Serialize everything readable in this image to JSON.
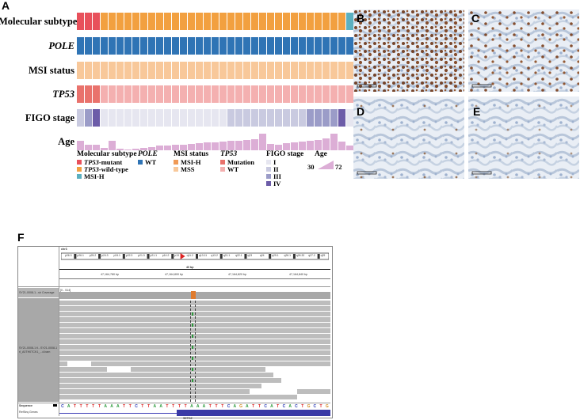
{
  "panels": {
    "A": "A",
    "B": "B",
    "C": "C",
    "D": "D",
    "E": "E",
    "F": "F"
  },
  "heatmap": {
    "rows": [
      {
        "key": "subtype",
        "label": "Molecular subtype",
        "italic": false
      },
      {
        "key": "pole",
        "label": "POLE",
        "italic": true
      },
      {
        "key": "msi",
        "label": "MSI status",
        "italic": false
      },
      {
        "key": "tp53",
        "label": "TP53",
        "italic": true
      },
      {
        "key": "figo",
        "label": "FIGO stage",
        "italic": false
      },
      {
        "key": "age",
        "label": "Age",
        "italic": false
      }
    ],
    "colors": {
      "tp53_mutant": "#e8505b",
      "tp53_wildtype": "#f2a040",
      "msi_h_subtype": "#5bb0c0",
      "pole_wt": "#2f74b5",
      "msi_h": "#f09a56",
      "mss": "#f8c89a",
      "tp53_mutation": "#e9726c",
      "tp53_wt": "#f4b0b0",
      "figo_I": "#e6e6f0",
      "figo_II": "#c9cae0",
      "figo_III": "#9b9cc8",
      "figo_IV": "#6c5ca8",
      "age": "#dcaed6"
    },
    "samples": {
      "subtype": [
        "m",
        "m",
        "m",
        "w",
        "w",
        "w",
        "w",
        "w",
        "w",
        "w",
        "w",
        "w",
        "w",
        "w",
        "w",
        "w",
        "w",
        "w",
        "w",
        "w",
        "w",
        "w",
        "w",
        "w",
        "w",
        "w",
        "w",
        "w",
        "w",
        "w",
        "w",
        "w",
        "w",
        "w",
        "h"
      ],
      "msi": [
        "s",
        "s",
        "s",
        "s",
        "s",
        "s",
        "s",
        "s",
        "s",
        "s",
        "s",
        "s",
        "s",
        "s",
        "s",
        "s",
        "s",
        "s",
        "s",
        "s",
        "s",
        "s",
        "s",
        "s",
        "s",
        "s",
        "s",
        "s",
        "s",
        "s",
        "s",
        "s",
        "s",
        "s",
        "s"
      ],
      "tp53": [
        "m",
        "m",
        "m",
        "w",
        "w",
        "w",
        "w",
        "w",
        "w",
        "w",
        "w",
        "w",
        "w",
        "w",
        "w",
        "w",
        "w",
        "w",
        "w",
        "w",
        "w",
        "w",
        "w",
        "w",
        "w",
        "w",
        "w",
        "w",
        "w",
        "w",
        "w",
        "w",
        "w",
        "w",
        "w"
      ],
      "figo": [
        "II",
        "III",
        "IV",
        "I",
        "I",
        "I",
        "I",
        "I",
        "I",
        "I",
        "I",
        "I",
        "I",
        "I",
        "I",
        "I",
        "I",
        "I",
        "I",
        "II",
        "II",
        "II",
        "II",
        "II",
        "II",
        "II",
        "II",
        "II",
        "II",
        "III",
        "III",
        "III",
        "III",
        "IV",
        "I"
      ],
      "age": [
        0.55,
        0.3,
        0.3,
        0.15,
        0.55,
        0.1,
        0.05,
        0.1,
        0.15,
        0.2,
        0.25,
        0.25,
        0.3,
        0.3,
        0.35,
        0.4,
        0.45,
        0.45,
        0.5,
        0.55,
        0.55,
        0.6,
        0.65,
        0.95,
        0.35,
        0.3,
        0.4,
        0.45,
        0.5,
        0.55,
        0.6,
        0.7,
        0.95,
        0.5,
        0.25
      ]
    }
  },
  "legend": {
    "subtype": {
      "title": "Molecular subtype",
      "items": [
        {
          "pre": "",
          "it": "TP53",
          "post": "-mutant",
          "color": "#e8505b"
        },
        {
          "pre": "",
          "it": "TP53",
          "post": "-wild-type",
          "color": "#f2a040"
        },
        {
          "pre": "MSI-H",
          "it": "",
          "post": "",
          "color": "#5bb0c0"
        }
      ]
    },
    "pole": {
      "title": "POLE",
      "items": [
        {
          "label": "WT",
          "color": "#2f74b5"
        }
      ]
    },
    "msi": {
      "title": "MSI status",
      "items": [
        {
          "label": "MSI-H",
          "color": "#f09a56"
        },
        {
          "label": "MSS",
          "color": "#f8c89a"
        }
      ]
    },
    "tp53": {
      "title": "TP53",
      "items": [
        {
          "label": "Mutation",
          "color": "#e9726c"
        },
        {
          "label": "WT",
          "color": "#f4b0b0"
        }
      ]
    },
    "figo": {
      "title": "FIGO stage",
      "items": [
        {
          "label": "I",
          "color": "#e6e6f0"
        },
        {
          "label": "II",
          "color": "#c9cae0"
        },
        {
          "label": "III",
          "color": "#9b9cc8"
        },
        {
          "label": "IV",
          "color": "#6c5ca8"
        }
      ]
    },
    "age": {
      "title": "Age",
      "min": "30",
      "max": "72"
    }
  },
  "igv": {
    "chrom": "chr3",
    "bands": [
      "p26.3",
      "p26.1",
      "p25.2",
      "p24.3",
      "p24.1",
      "p22.3",
      "p21.3",
      "p21.1",
      "p14.2",
      "p13",
      "q11.2",
      "q13.11",
      "q13.2",
      "q21.1",
      "q22.1",
      "q23",
      "q24",
      "q25.1",
      "q26.1",
      "q26.32",
      "q27.2",
      "q29"
    ],
    "scale_label": "40 bp",
    "ruler": [
      "47,164,780 bp",
      "47,164,800 bp",
      "47,164,820 bp",
      "47,164,840 bp"
    ],
    "coverage_label": "SY21-0008-1...sh Coverage",
    "coverage_range": "[0 - 514]",
    "alignment_label_1": "SY21-0008-1 tl...SY21-0008-1",
    "alignment_label_2": "rl_A0TH0TCK1_...d.bam",
    "sequence_label": "Sequence",
    "refseq_label": "RefSeq Genes",
    "gene_name": "SETD2",
    "sequence": "CATTTTTAAATTCTTAATTTTAAATTTCAGATTCATCACTGCTG"
  }
}
